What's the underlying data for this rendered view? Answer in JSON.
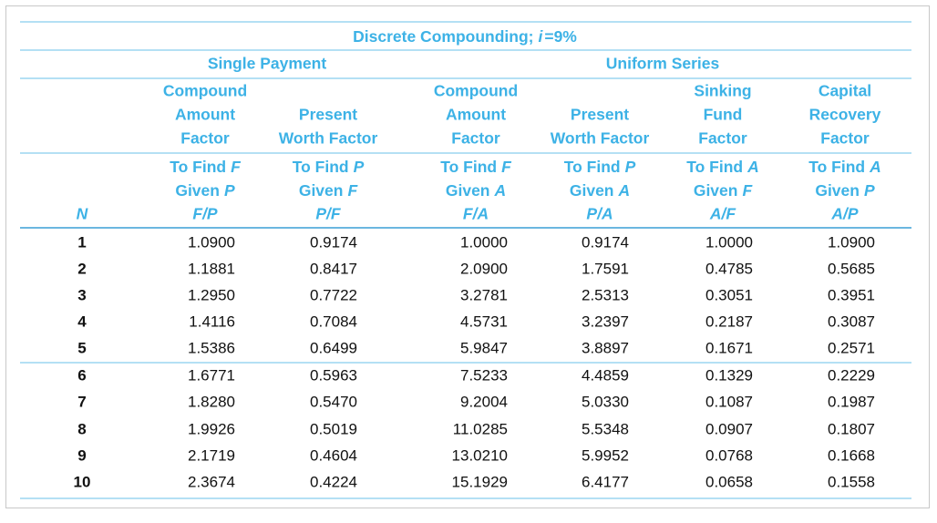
{
  "table": {
    "title": [
      "Discrete Compounding;",
      "i",
      "=9%"
    ],
    "groups": [
      "Single Payment",
      "Uniform Series"
    ],
    "n_header": "N",
    "columns": [
      {
        "name": [
          "Compound",
          "Amount",
          "Factor"
        ],
        "find": [
          "To Find",
          "F"
        ],
        "given": [
          "Given",
          "P"
        ],
        "ratio": "F/P"
      },
      {
        "name": [
          "Present",
          "Worth Factor"
        ],
        "find": [
          "To Find",
          "P"
        ],
        "given": [
          "Given",
          "F"
        ],
        "ratio": "P/F"
      },
      {
        "name": [
          "Compound",
          "Amount",
          "Factor"
        ],
        "find": [
          "To Find",
          "F"
        ],
        "given": [
          "Given",
          "A"
        ],
        "ratio": "F/A"
      },
      {
        "name": [
          "Present",
          "Worth Factor"
        ],
        "find": [
          "To Find",
          "P"
        ],
        "given": [
          "Given",
          "A"
        ],
        "ratio": "P/A"
      },
      {
        "name": [
          "Sinking",
          "Fund",
          "Factor"
        ],
        "find": [
          "To Find",
          "A"
        ],
        "given": [
          "Given",
          "F"
        ],
        "ratio": "A/F"
      },
      {
        "name": [
          "Capital",
          "Recovery",
          "Factor"
        ],
        "find": [
          "To Find",
          "A"
        ],
        "given": [
          "Given",
          "P"
        ],
        "ratio": "A/P"
      }
    ],
    "rows": [
      [
        "1",
        "1.0900",
        "0.9174",
        "1.0000",
        "0.9174",
        "1.0000",
        "1.0900"
      ],
      [
        "2",
        "1.1881",
        "0.8417",
        "2.0900",
        "1.7591",
        "0.4785",
        "0.5685"
      ],
      [
        "3",
        "1.2950",
        "0.7722",
        "3.2781",
        "2.5313",
        "0.3051",
        "0.3951"
      ],
      [
        "4",
        "1.4116",
        "0.7084",
        "4.5731",
        "3.2397",
        "0.2187",
        "0.3087"
      ],
      [
        "5",
        "1.5386",
        "0.6499",
        "5.9847",
        "3.8897",
        "0.1671",
        "0.2571"
      ],
      [
        "6",
        "1.6771",
        "0.5963",
        "7.5233",
        "4.4859",
        "0.1329",
        "0.2229"
      ],
      [
        "7",
        "1.8280",
        "0.5470",
        "9.2004",
        "5.0330",
        "0.1087",
        "0.1987"
      ],
      [
        "8",
        "1.9926",
        "0.5019",
        "11.0285",
        "5.5348",
        "0.0907",
        "0.1807"
      ],
      [
        "9",
        "2.1719",
        "0.4604",
        "13.0210",
        "5.9952",
        "0.0768",
        "0.1668"
      ],
      [
        "10",
        "2.3674",
        "0.4224",
        "15.1929",
        "6.4177",
        "0.0658",
        "0.1558"
      ]
    ]
  }
}
